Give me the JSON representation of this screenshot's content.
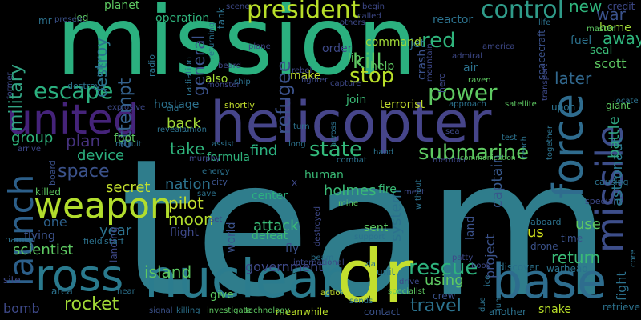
{
  "words": [
    {
      "t": "team",
      "c": "#2f7d8c"
    },
    {
      "t": "mission",
      "c": "#2bb07f"
    },
    {
      "t": "helicopter",
      "c": "#46458a"
    },
    {
      "t": "nuclear",
      "c": "#2b7c8e"
    },
    {
      "t": "base",
      "c": "#2e6d8e"
    },
    {
      "t": "dr",
      "c": "#c3df2e"
    },
    {
      "t": "ross",
      "c": "#2a7a8e"
    },
    {
      "t": "united",
      "c": "#45237a"
    },
    {
      "t": "launch",
      "c": "#2c5f8a"
    },
    {
      "t": "force",
      "c": "#2f6c8e"
    },
    {
      "t": "missile",
      "c": "#3d4e8a"
    },
    {
      "t": "weapon",
      "c": "#b2dd2d"
    },
    {
      "t": "president",
      "c": "#b8de29"
    },
    {
      "t": "escape",
      "c": "#2bb07f"
    },
    {
      "t": "power",
      "c": "#5ec962"
    },
    {
      "t": "control",
      "c": "#2f9b89"
    },
    {
      "t": "submarine",
      "c": "#5ec962"
    },
    {
      "t": "state",
      "c": "#33b87a"
    },
    {
      "t": "kill",
      "c": "#5ec962"
    },
    {
      "t": "stop",
      "c": "#b8de29"
    },
    {
      "t": "red",
      "c": "#2fb47c"
    },
    {
      "t": "refugee",
      "c": "#3b528b"
    },
    {
      "t": "attempt",
      "c": "#34618d"
    },
    {
      "t": "military",
      "c": "#33a685"
    },
    {
      "t": "destroy",
      "c": "#2b748e"
    },
    {
      "t": "general",
      "c": "#3b528b"
    },
    {
      "t": "rescue",
      "c": "#2db27d"
    },
    {
      "t": "travel",
      "c": "#2c728e"
    },
    {
      "t": "rocket",
      "c": "#a2da37"
    },
    {
      "t": "island",
      "c": "#5ec962"
    },
    {
      "t": "government",
      "c": "#3e4989"
    },
    {
      "t": "using",
      "c": "#5ec962"
    },
    {
      "t": "return",
      "c": "#3aba76"
    },
    {
      "t": "captain",
      "c": "#38588c"
    },
    {
      "t": "astronaut",
      "c": "#2a788e"
    },
    {
      "t": "fight",
      "c": "#2c728e"
    },
    {
      "t": "battle",
      "c": "#2ea37f"
    },
    {
      "t": "new",
      "c": "#2fb47c"
    },
    {
      "t": "war",
      "c": "#3b528b"
    },
    {
      "t": "away",
      "c": "#2fb47c"
    },
    {
      "t": "later",
      "c": "#31688e"
    },
    {
      "t": "scott",
      "c": "#5ec962"
    },
    {
      "t": "pilot",
      "c": "#c3df2e"
    },
    {
      "t": "moon",
      "c": "#b2dd2d"
    },
    {
      "t": "nation",
      "c": "#2c728e"
    },
    {
      "t": "attack",
      "c": "#3aba76"
    },
    {
      "t": "space",
      "c": "#3b528b"
    },
    {
      "t": "plan",
      "c": "#46327e"
    },
    {
      "t": "device",
      "c": "#2bb07f"
    },
    {
      "t": "take",
      "c": "#2fb47c"
    },
    {
      "t": "back",
      "c": "#a2da37"
    },
    {
      "t": "find",
      "c": "#2bb07f"
    },
    {
      "t": "group",
      "c": "#2fb47c"
    },
    {
      "t": "secret",
      "c": "#c3df2e"
    },
    {
      "t": "year",
      "c": "#2c728e"
    },
    {
      "t": "one",
      "c": "#2c5f8a"
    },
    {
      "t": "scientist",
      "c": "#5ec962"
    },
    {
      "t": "holmes",
      "c": "#3aba76"
    },
    {
      "t": "system",
      "c": "#2c728e"
    },
    {
      "t": "project",
      "c": "#3b528b"
    },
    {
      "t": "us",
      "c": "#d2e21b"
    },
    {
      "t": "use",
      "c": "#5ec962"
    },
    {
      "t": "world",
      "c": "#3b528b"
    },
    {
      "t": "bomb",
      "c": "#3e4989"
    },
    {
      "t": "foot",
      "c": "#5ec962"
    },
    {
      "t": "formula",
      "c": "#2fb47c"
    },
    {
      "t": "hostage",
      "c": "#2c728e"
    },
    {
      "t": "terrorist",
      "c": "#c3df2e"
    },
    {
      "t": "join",
      "c": "#3aba76"
    },
    {
      "t": "crash",
      "c": "#3b528b"
    },
    {
      "t": "help",
      "c": "#5ec962"
    },
    {
      "t": "lin",
      "c": "#5ec962"
    },
    {
      "t": "make",
      "c": "#c3df2e"
    },
    {
      "t": "also",
      "c": "#a2da37"
    },
    {
      "t": "order",
      "c": "#3e4989"
    },
    {
      "t": "jet",
      "c": "#2c728e"
    },
    {
      "t": "air",
      "c": "#2c728e"
    },
    {
      "t": "command",
      "c": "#a2da37"
    },
    {
      "t": "home",
      "c": "#a2da37"
    },
    {
      "t": "fuel",
      "c": "#2c728e"
    },
    {
      "t": "credit",
      "c": "#3e4989"
    },
    {
      "t": "seal",
      "c": "#3aba76"
    },
    {
      "t": "spacecraft",
      "c": "#3b528b"
    },
    {
      "t": "reactor",
      "c": "#2c728e"
    },
    {
      "t": "operation",
      "c": "#2fb47c"
    },
    {
      "t": "planet",
      "c": "#5ec962"
    },
    {
      "t": "led",
      "c": "#5ec962"
    },
    {
      "t": "mr",
      "c": "#2c728e"
    },
    {
      "t": "tank",
      "c": "#2c728e"
    },
    {
      "t": "center",
      "c": "#2bb07f"
    },
    {
      "t": "fly",
      "c": "#3b528b"
    },
    {
      "t": "defeat",
      "c": "#3aba76"
    },
    {
      "t": "sent",
      "c": "#5ec962"
    },
    {
      "t": "land",
      "c": "#3b528b"
    },
    {
      "t": "human",
      "c": "#3aba76"
    },
    {
      "t": "fire",
      "c": "#3aba76"
    },
    {
      "t": "unit",
      "c": "#2c728e"
    },
    {
      "t": "discover",
      "c": "#2c728e"
    },
    {
      "t": "warhead",
      "c": "#2c728e"
    },
    {
      "t": "another",
      "c": "#2c728e"
    },
    {
      "t": "snake",
      "c": "#b8de29"
    },
    {
      "t": "retrieve",
      "c": "#2c728e"
    },
    {
      "t": "giant",
      "c": "#5ec962"
    },
    {
      "t": "upon",
      "c": "#2c728e"
    },
    {
      "t": "flight",
      "c": "#3e4989"
    },
    {
      "t": "flying",
      "c": "#3b528b"
    },
    {
      "t": "killed",
      "c": "#5ec962"
    },
    {
      "t": "landing",
      "c": "#3e4989"
    },
    {
      "t": "area",
      "c": "#2c728e"
    },
    {
      "t": "give",
      "c": "#5ec962"
    },
    {
      "t": "meanwhile",
      "c": "#b8de29"
    },
    {
      "t": "contact",
      "c": "#3b528b"
    },
    {
      "t": "crew",
      "c": "#3b528b"
    },
    {
      "t": "site",
      "c": "#3e4989"
    },
    {
      "t": "drone",
      "c": "#3b528b"
    },
    {
      "t": "time",
      "c": "#3b528b"
    },
    {
      "t": "radio",
      "c": "#2c728e"
    },
    {
      "t": "radiation",
      "c": "#2c728e"
    },
    {
      "t": "city",
      "c": "#3b528b"
    },
    {
      "t": "board",
      "c": "#3b528b"
    },
    {
      "t": "staff",
      "c": "#2c728e"
    },
    {
      "t": "field",
      "c": "#2c728e"
    },
    {
      "t": "named",
      "c": "#2c728e"
    },
    {
      "t": "destroys",
      "c": "#2c728e"
    },
    {
      "t": "strike",
      "c": "#2c728e"
    },
    {
      "t": "present",
      "c": "#3b528b"
    },
    {
      "t": "former",
      "c": "#3e4989"
    },
    {
      "t": "explosive",
      "c": "#3e4989"
    },
    {
      "t": "causing",
      "c": "#2c728e"
    },
    {
      "t": "special",
      "c": "#3e4989"
    },
    {
      "t": "aboard",
      "c": "#2c728e"
    },
    {
      "t": "core",
      "c": "#2c728e"
    },
    {
      "t": "locate",
      "c": "#2c728e"
    },
    {
      "t": "master",
      "c": "#5ec962"
    },
    {
      "t": "life",
      "c": "#2c728e"
    },
    {
      "t": "america",
      "c": "#3e4989"
    },
    {
      "t": "admiral",
      "c": "#3e4989"
    },
    {
      "t": "raven",
      "c": "#5ec962"
    },
    {
      "t": "mountain",
      "c": "#3e4989"
    },
    {
      "t": "capture",
      "c": "#3e4989"
    },
    {
      "t": "approach",
      "c": "#2c728e"
    },
    {
      "t": "satellite",
      "c": "#5ec962"
    },
    {
      "t": "hero",
      "c": "#3e4989"
    },
    {
      "t": "returning",
      "c": "#2c728e"
    },
    {
      "t": "beard",
      "c": "#3e4989"
    },
    {
      "t": "fighter",
      "c": "#3e4989"
    },
    {
      "t": "ship",
      "c": "#2c728e"
    },
    {
      "t": "plane",
      "c": "#3e4989"
    },
    {
      "t": "monster",
      "c": "#3e4989"
    },
    {
      "t": "shortly",
      "c": "#c3df2e"
    },
    {
      "t": "old",
      "c": "#2c728e"
    },
    {
      "t": "reveals",
      "c": "#2c728e"
    },
    {
      "t": "union",
      "c": "#2c728e"
    },
    {
      "t": "recruit",
      "c": "#2c728e"
    },
    {
      "t": "murphy",
      "c": "#3e4989"
    },
    {
      "t": "assist",
      "c": "#2c728e"
    },
    {
      "t": "energy",
      "c": "#2c728e"
    },
    {
      "t": "long",
      "c": "#2c728e"
    },
    {
      "t": "across",
      "c": "#2c728e"
    },
    {
      "t": "combat",
      "c": "#2c728e"
    },
    {
      "t": "turn",
      "c": "#2c728e"
    },
    {
      "t": "hand",
      "c": "#2c728e"
    },
    {
      "t": "member",
      "c": "#3e4989"
    },
    {
      "t": "communication",
      "c": "#5ec962"
    },
    {
      "t": "test",
      "c": "#2c728e"
    },
    {
      "t": "reach",
      "c": "#2c728e"
    },
    {
      "t": "together",
      "c": "#2c728e"
    },
    {
      "t": "meet",
      "c": "#3e4989"
    },
    {
      "t": "without",
      "c": "#2c728e"
    },
    {
      "t": "international",
      "c": "#3e4989"
    },
    {
      "t": "mine",
      "c": "#5ec962"
    },
    {
      "t": "destroyed",
      "c": "#3e4989"
    },
    {
      "t": "save",
      "c": "#2c728e"
    },
    {
      "t": "set",
      "c": "#3e4989"
    },
    {
      "t": "support",
      "c": "#2c728e"
    },
    {
      "t": "beam",
      "c": "#2c728e"
    },
    {
      "t": "via",
      "c": "#2c728e"
    },
    {
      "t": "drive",
      "c": "#3e4989"
    },
    {
      "t": "patty",
      "c": "#3e4989"
    },
    {
      "t": "book",
      "c": "#3e4989"
    },
    {
      "t": "ice",
      "c": "#2c728e"
    },
    {
      "t": "due",
      "c": "#2c728e"
    },
    {
      "t": "jump",
      "c": "#2c728e"
    },
    {
      "t": "specialist",
      "c": "#5ec962"
    },
    {
      "t": "action",
      "c": "#c3df2e"
    },
    {
      "t": "sends",
      "c": "#2c728e"
    },
    {
      "t": "killing",
      "c": "#2c728e"
    },
    {
      "t": "investigate",
      "c": "#5ec962"
    },
    {
      "t": "technology",
      "c": "#5ec962"
    },
    {
      "t": "signal",
      "c": "#3b528b"
    },
    {
      "t": "near",
      "c": "#2c728e"
    },
    {
      "t": "arrive",
      "c": "#3e4989"
    },
    {
      "t": "transport",
      "c": "#3e4989"
    },
    {
      "t": "sea",
      "c": "#3e4989"
    },
    {
      "t": "scene",
      "c": "#3e4989"
    },
    {
      "t": "begin",
      "c": "#3e4989"
    },
    {
      "t": "others",
      "c": "#3e4989"
    },
    {
      "t": "rebel",
      "c": "#3e4989"
    },
    {
      "t": "called",
      "c": "#3e4989"
    },
    {
      "t": "x",
      "c": "#3e4989"
    }
  ]
}
